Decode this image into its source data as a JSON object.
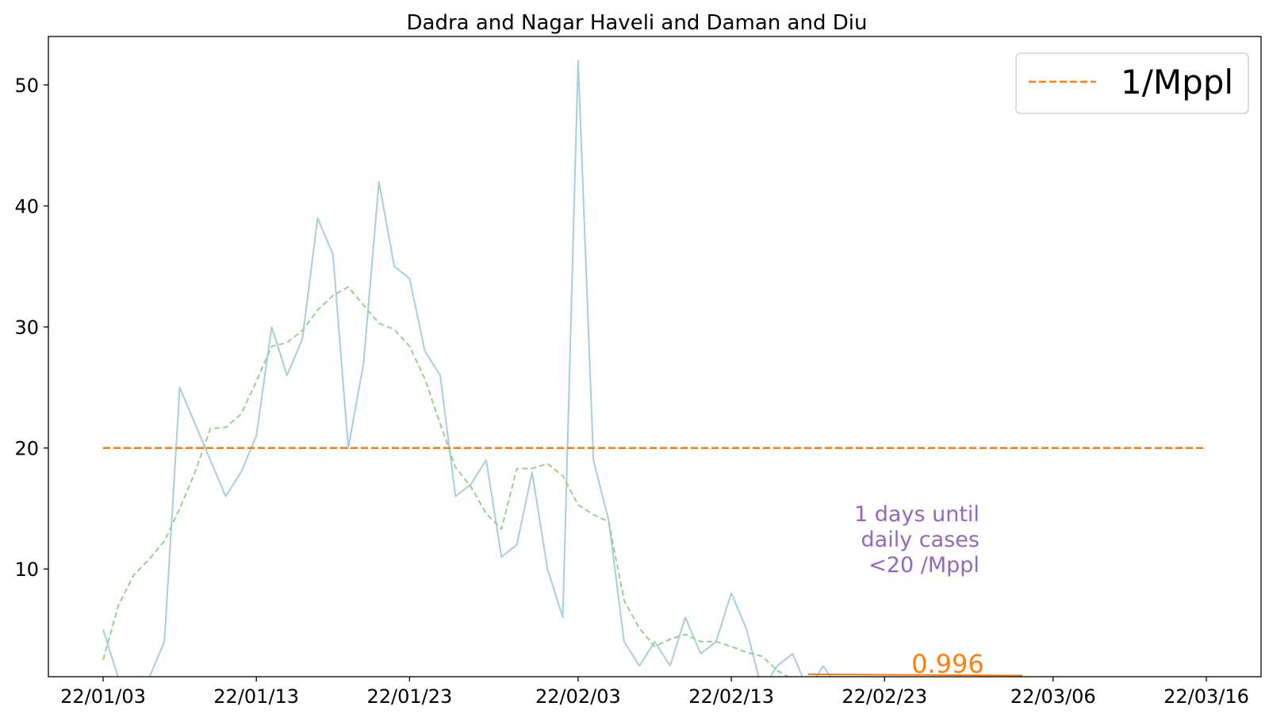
{
  "chart_data": {
    "type": "line",
    "title": "Dadra and Nagar Haveli and Daman and Diu",
    "xlabel": "",
    "ylabel": "",
    "x_start": "2022-01-03",
    "x_end": "2022-03-16",
    "ylim": [
      1.1,
      54
    ],
    "grid": false,
    "legend_placement": "top-right",
    "x_ticks": [
      {
        "date": "2022-01-03",
        "label": "22/01/03"
      },
      {
        "date": "2022-01-13",
        "label": "22/01/13"
      },
      {
        "date": "2022-01-23",
        "label": "22/01/23"
      },
      {
        "date": "2022-02-03",
        "label": "22/02/03"
      },
      {
        "date": "2022-02-13",
        "label": "22/02/13"
      },
      {
        "date": "2022-02-23",
        "label": "22/02/23"
      },
      {
        "date": "2022-03-06",
        "label": "22/03/06"
      },
      {
        "date": "2022-03-16",
        "label": "22/03/16"
      }
    ],
    "y_ticks": [
      {
        "value": 10,
        "label": "10"
      },
      {
        "value": 20,
        "label": "20"
      },
      {
        "value": 30,
        "label": "30"
      },
      {
        "value": 40,
        "label": "40"
      },
      {
        "value": 50,
        "label": "50"
      }
    ],
    "series": [
      {
        "style": "solid",
        "color": "#a6cde2",
        "points": [
          [
            "2022-01-03",
            5
          ],
          [
            "2022-01-04",
            1
          ],
          [
            "2022-01-05",
            0
          ],
          [
            "2022-01-06",
            1
          ],
          [
            "2022-01-07",
            4
          ],
          [
            "2022-01-08",
            25
          ],
          [
            "2022-01-09",
            22
          ],
          [
            "2022-01-10",
            19
          ],
          [
            "2022-01-11",
            16
          ],
          [
            "2022-01-12",
            18
          ],
          [
            "2022-01-13",
            21
          ],
          [
            "2022-01-14",
            30
          ],
          [
            "2022-01-15",
            26
          ],
          [
            "2022-01-16",
            29
          ],
          [
            "2022-01-17",
            39
          ],
          [
            "2022-01-18",
            36
          ],
          [
            "2022-01-19",
            20
          ],
          [
            "2022-01-20",
            27
          ],
          [
            "2022-01-21",
            42
          ],
          [
            "2022-01-22",
            35
          ],
          [
            "2022-01-23",
            34
          ],
          [
            "2022-01-24",
            28
          ],
          [
            "2022-01-25",
            26
          ],
          [
            "2022-01-26",
            16
          ],
          [
            "2022-01-27",
            17
          ],
          [
            "2022-01-28",
            19
          ],
          [
            "2022-01-29",
            11
          ],
          [
            "2022-01-30",
            12
          ],
          [
            "2022-01-31",
            18
          ],
          [
            "2022-02-01",
            10
          ],
          [
            "2022-02-02",
            6
          ],
          [
            "2022-02-03",
            52
          ],
          [
            "2022-02-04",
            19
          ],
          [
            "2022-02-05",
            14
          ],
          [
            "2022-02-06",
            4
          ],
          [
            "2022-02-07",
            2
          ],
          [
            "2022-02-08",
            4
          ],
          [
            "2022-02-09",
            2
          ],
          [
            "2022-02-10",
            6
          ],
          [
            "2022-02-11",
            3
          ],
          [
            "2022-02-12",
            4
          ],
          [
            "2022-02-13",
            8
          ],
          [
            "2022-02-14",
            5
          ],
          [
            "2022-02-15",
            0
          ],
          [
            "2022-02-16",
            2
          ],
          [
            "2022-02-17",
            3
          ],
          [
            "2022-02-18",
            0
          ],
          [
            "2022-02-19",
            2
          ],
          [
            "2022-02-20",
            0
          ]
        ]
      },
      {
        "style": "dashed",
        "color": "#98d08a",
        "points": [
          [
            "2022-01-03",
            2.5
          ],
          [
            "2022-01-04",
            7
          ],
          [
            "2022-01-05",
            9.5
          ],
          [
            "2022-01-06",
            10.8
          ],
          [
            "2022-01-07",
            12.3
          ],
          [
            "2022-01-08",
            15
          ],
          [
            "2022-01-09",
            18
          ],
          [
            "2022-01-10",
            21.6
          ],
          [
            "2022-01-11",
            21.7
          ],
          [
            "2022-01-12",
            22.8
          ],
          [
            "2022-01-13",
            25.5
          ],
          [
            "2022-01-14",
            28.4
          ],
          [
            "2022-01-15",
            28.7
          ],
          [
            "2022-01-16",
            29.7
          ],
          [
            "2022-01-17",
            31.4
          ],
          [
            "2022-01-18",
            32.6
          ],
          [
            "2022-01-19",
            33.3
          ],
          [
            "2022-01-20",
            31.8
          ],
          [
            "2022-01-21",
            30.3
          ],
          [
            "2022-01-22",
            29.8
          ],
          [
            "2022-01-23",
            28.4
          ],
          [
            "2022-01-24",
            25.7
          ],
          [
            "2022-01-25",
            22
          ],
          [
            "2022-01-26",
            18.4
          ],
          [
            "2022-01-27",
            16.8
          ],
          [
            "2022-01-28",
            14.6
          ],
          [
            "2022-01-29",
            13.3
          ],
          [
            "2022-01-30",
            18.3
          ],
          [
            "2022-01-31",
            18.3
          ],
          [
            "2022-02-01",
            18.7
          ],
          [
            "2022-02-02",
            17.7
          ],
          [
            "2022-02-03",
            15.3
          ],
          [
            "2022-02-04",
            14.5
          ],
          [
            "2022-02-05",
            13.9
          ],
          [
            "2022-02-06",
            7.4
          ],
          [
            "2022-02-07",
            5.1
          ],
          [
            "2022-02-08",
            3.6
          ],
          [
            "2022-02-09",
            4.2
          ],
          [
            "2022-02-10",
            4.6
          ],
          [
            "2022-02-11",
            4
          ],
          [
            "2022-02-12",
            4
          ],
          [
            "2022-02-13",
            3.6
          ],
          [
            "2022-02-14",
            3.1
          ],
          [
            "2022-02-15",
            2.8
          ],
          [
            "2022-02-16",
            1.6
          ],
          [
            "2022-02-17",
            0.9
          ]
        ]
      },
      {
        "name": "1/Mppl",
        "style": "dashed",
        "color": "#ff7f0e",
        "points": [
          [
            "2022-01-03",
            20
          ],
          [
            "2022-03-16",
            20
          ]
        ]
      },
      {
        "style": "solid",
        "color": "#ff7f0e",
        "points": [
          [
            "2022-02-18",
            1.3
          ],
          [
            "2022-03-04",
            1.2
          ]
        ]
      }
    ],
    "annotations": [
      {
        "lines": [
          "1 days until",
          "daily cases",
          "<20 /Mppl"
        ],
        "color": "#9467bd",
        "x": "2022-02-25",
        "y": 12.5
      },
      {
        "text": "0.996",
        "color": "#ff7f0e",
        "x": "2022-02-25",
        "y": 1.3
      }
    ]
  }
}
